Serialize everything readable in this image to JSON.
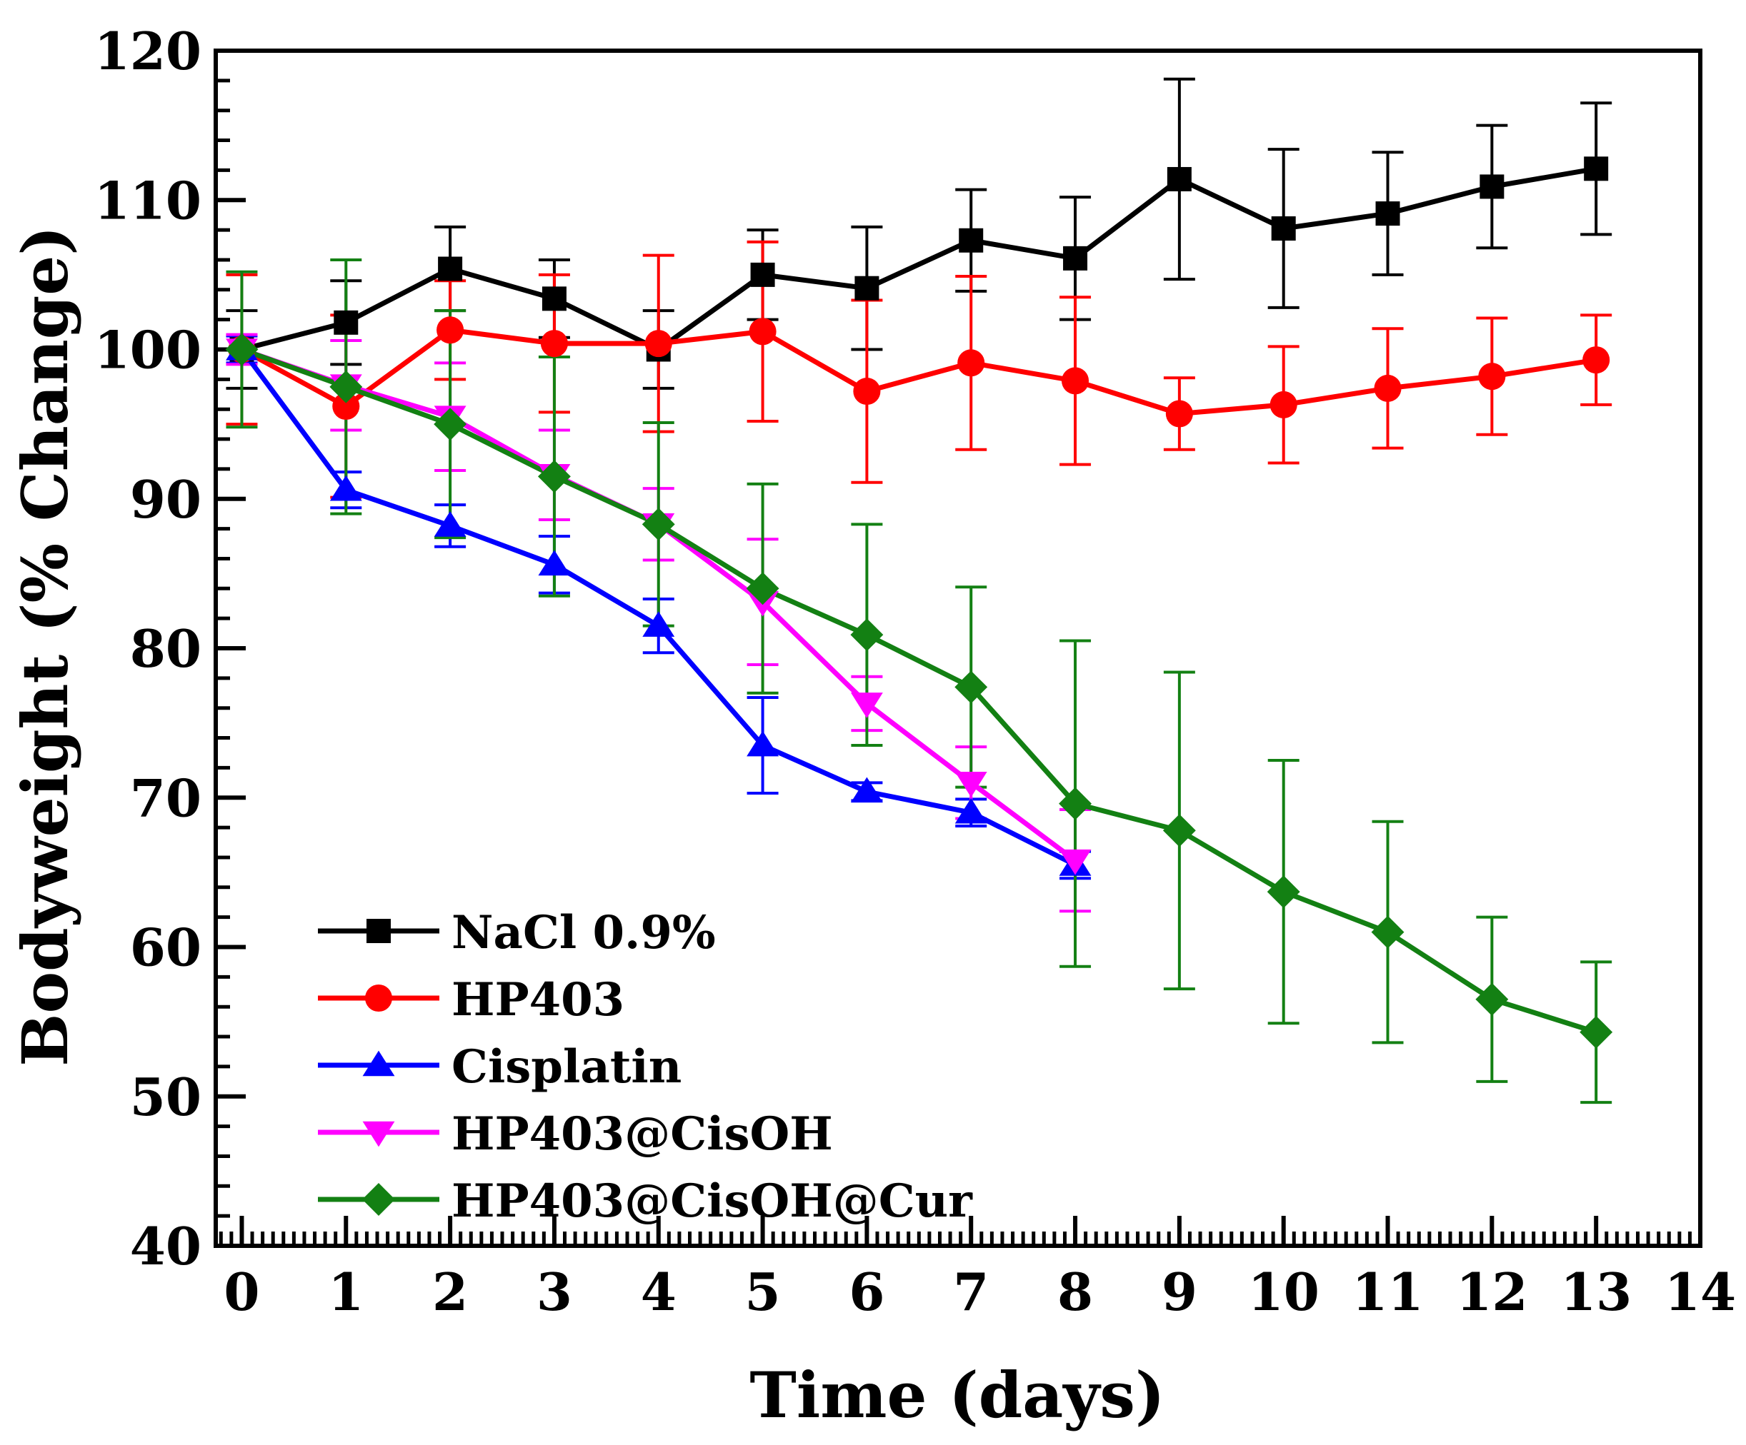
{
  "chart_data": {
    "type": "line",
    "title": "",
    "xlabel": "Time (days)",
    "ylabel": "Bodyweight (% Change)",
    "xlim": [
      -0.25,
      14
    ],
    "ylim": [
      40,
      120
    ],
    "xticks": [
      0,
      1,
      2,
      3,
      4,
      5,
      6,
      7,
      8,
      9,
      10,
      11,
      12,
      13,
      14
    ],
    "yticks": [
      40,
      50,
      60,
      70,
      80,
      90,
      100,
      110,
      120
    ],
    "legend_position": "bottom-left",
    "series": [
      {
        "name": "NaCl 0.9%",
        "color": "#000000",
        "marker": "square",
        "x": [
          0,
          1,
          2,
          3,
          4,
          5,
          6,
          7,
          8,
          9,
          10,
          11,
          12,
          13
        ],
        "y": [
          100,
          101.8,
          105.4,
          103.4,
          100,
          105,
          104.1,
          107.3,
          106.1,
          111.4,
          108.1,
          109.1,
          110.9,
          112.1
        ],
        "err": [
          2.6,
          2.8,
          2.8,
          2.6,
          2.6,
          3.0,
          4.1,
          3.4,
          4.1,
          6.7,
          5.3,
          4.1,
          4.1,
          4.4
        ]
      },
      {
        "name": "HP403",
        "color": "#ff0000",
        "marker": "circle",
        "x": [
          0,
          1,
          2,
          3,
          4,
          5,
          6,
          7,
          8,
          9,
          10,
          11,
          12,
          13
        ],
        "y": [
          100,
          96.2,
          101.3,
          100.4,
          100.4,
          101.2,
          97.2,
          99.1,
          97.9,
          95.7,
          96.3,
          97.4,
          98.2,
          99.3
        ],
        "err": [
          5.0,
          6.1,
          3.3,
          4.6,
          5.9,
          6.0,
          6.1,
          5.8,
          5.6,
          2.4,
          3.9,
          4.0,
          3.9,
          3.0
        ]
      },
      {
        "name": "Cisplatin",
        "color": "#0000ff",
        "marker": "triangle-up",
        "x": [
          0,
          1,
          2,
          3,
          4,
          5,
          6,
          7,
          8
        ],
        "y": [
          100,
          90.6,
          88.2,
          85.6,
          81.5,
          73.5,
          70.4,
          69,
          65.5
        ],
        "err": [
          0.9,
          1.2,
          1.4,
          1.9,
          1.8,
          3.2,
          0.6,
          0.9,
          0.9
        ]
      },
      {
        "name": "HP403@CisOH",
        "color": "#ff00ff",
        "marker": "triangle-down",
        "x": [
          0,
          1,
          2,
          3,
          4,
          5,
          6,
          7,
          8
        ],
        "y": [
          100,
          97.6,
          95.5,
          91.6,
          88.3,
          83.1,
          76.3,
          71,
          65.8
        ],
        "err": [
          1.0,
          3.0,
          3.6,
          3.0,
          2.4,
          4.2,
          1.8,
          2.4,
          3.4
        ]
      },
      {
        "name": "HP403@CisOH@Cur",
        "color": "#138013",
        "marker": "diamond",
        "x": [
          0,
          1,
          2,
          3,
          4,
          5,
          6,
          7,
          8,
          9,
          10,
          11,
          12,
          13
        ],
        "y": [
          100,
          97.5,
          95,
          91.5,
          88.3,
          84,
          80.9,
          77.4,
          69.6,
          67.8,
          63.7,
          61,
          56.5,
          54.3
        ],
        "err": [
          5.2,
          8.5,
          7.6,
          8.0,
          6.8,
          7.0,
          7.4,
          6.7,
          10.9,
          10.6,
          8.8,
          7.4,
          5.5,
          4.7
        ]
      }
    ]
  }
}
